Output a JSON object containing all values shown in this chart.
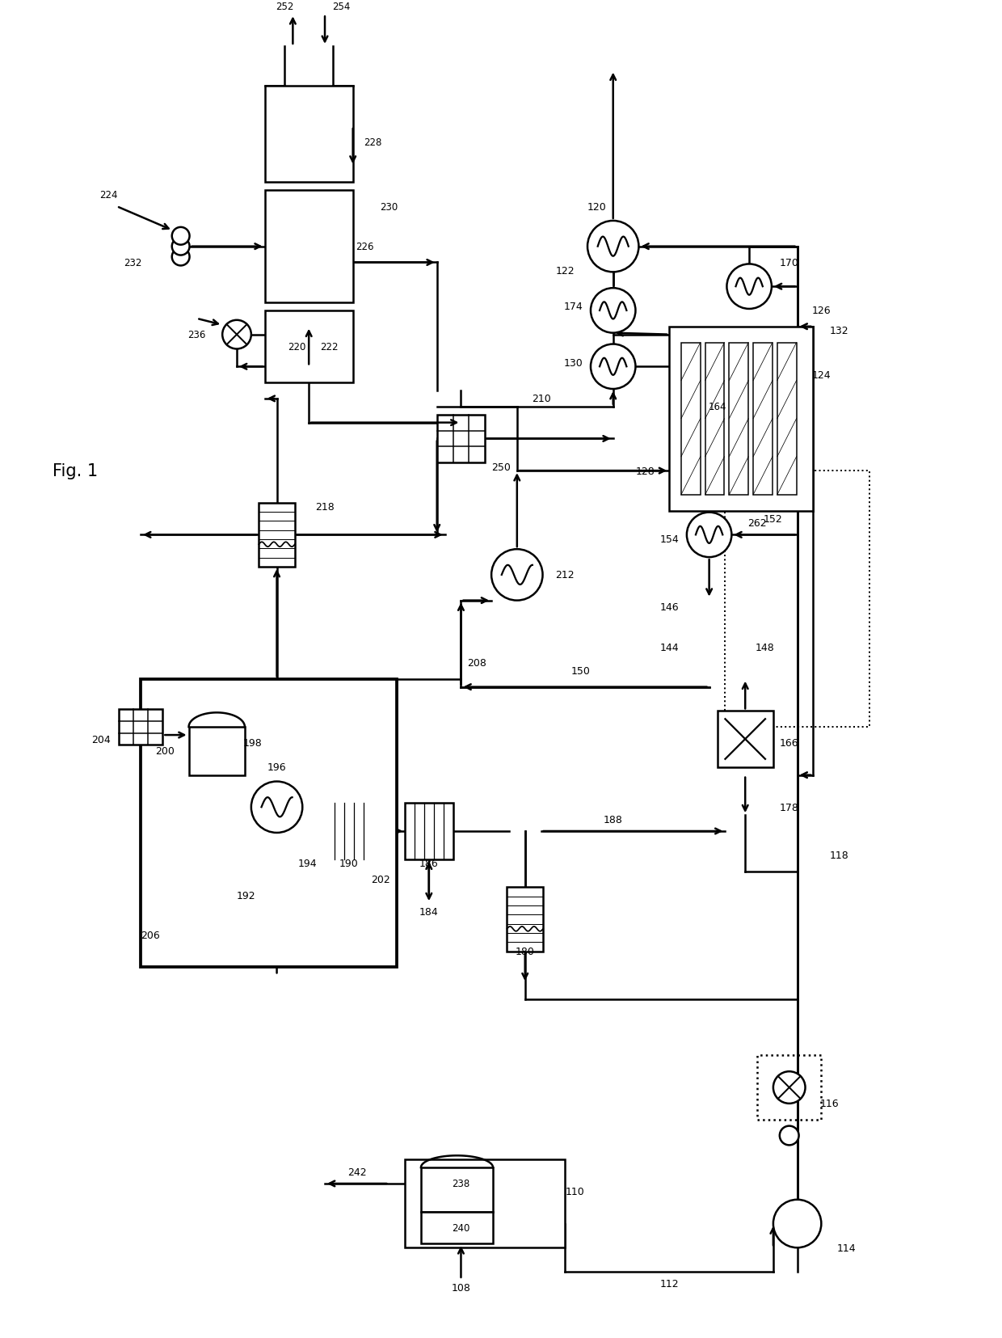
{
  "title": "Fig. 1",
  "bg": "#ffffff",
  "lw": 1.8
}
